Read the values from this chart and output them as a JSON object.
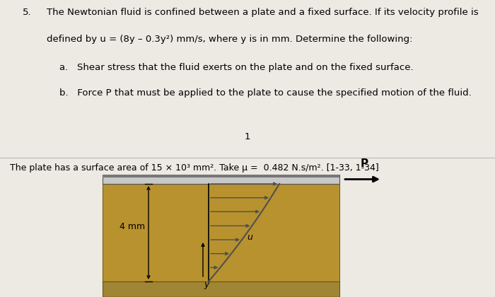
{
  "bg_color": "#ede9e3",
  "paper_color": "#f5f3ef",
  "fluid_color": "#b8922e",
  "plate_top_color": "#c8c8c8",
  "plate_bottom_color": "#909090",
  "ground_top_color": "#a08535",
  "ground_bottom_color": "#8a7020",
  "arrow_color": "#505050",
  "curve_color": "#505050",
  "title_number": "5.",
  "line1": "The Newtonian fluid is confined between a plate and a fixed surface. If its velocity profile is",
  "line2": "defined by u = (8y – 0.3y²) mm/s, where y is in mm. Determine the following:",
  "sub_a": "a.   Shear stress that the fluid exerts on the plate and on the fixed surface.",
  "sub_b": "b.   Force P that must be applied to the plate to cause the specified motion of the fluid.",
  "page_number": "1",
  "bottom_text": "The plate has a surface area of 15 × 10³ mm². Take μ =  0.482 N.s/m². [1-33, 1-34]",
  "label_4mm": "4 mm",
  "label_y": "y",
  "label_u": "u",
  "label_P": "P",
  "fig_width": 7.0,
  "fig_height": 4.2,
  "dpi": 100
}
